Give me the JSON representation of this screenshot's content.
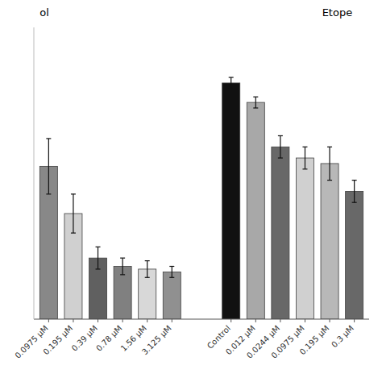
{
  "chart_data": {
    "type": "bar",
    "categories": [
      "0.0975 μM",
      "0.195 μM",
      "0.39 μM",
      "0.78 μM",
      "1.56 μM",
      "3.125 μM",
      "Control",
      "0.012 μM",
      "0.0244 μM",
      "0.0975 μM",
      "0.195 μM",
      "0.3 μM"
    ],
    "values": [
      55,
      38,
      22,
      19,
      18,
      17,
      85,
      78,
      62,
      58,
      56,
      46
    ],
    "errors": [
      10,
      7,
      4,
      3,
      3,
      2,
      2,
      2,
      4,
      4,
      6,
      4
    ],
    "colors": [
      "#888888",
      "#d0d0d0",
      "#606060",
      "#808080",
      "#d8d8d8",
      "#909090",
      "#111111",
      "#a8a8a8",
      "#686868",
      "#d0d0d0",
      "#b8b8b8",
      "#686868"
    ],
    "ylim": [
      0,
      105
    ],
    "grid": false,
    "tick_labels": "x",
    "annotations": [
      "ol",
      "Etope"
    ]
  }
}
